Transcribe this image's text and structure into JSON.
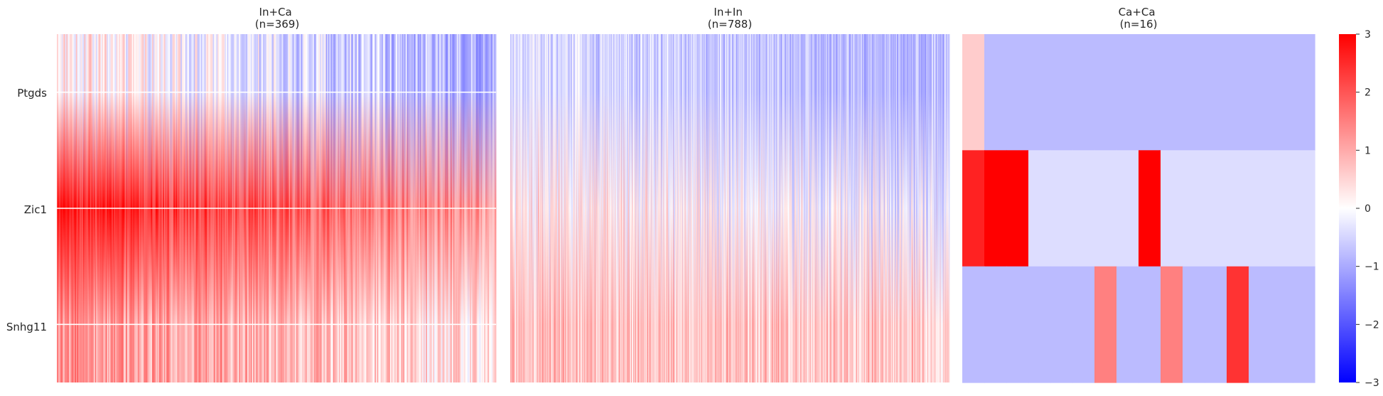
{
  "chart_data": {
    "type": "heatmap",
    "genes": [
      "Ptgds",
      "Zic1",
      "Snhg11"
    ],
    "colorbar": {
      "vmin": -3,
      "vmax": 3,
      "ticks": [
        3,
        2,
        1,
        0,
        -1,
        -2,
        -3
      ],
      "tick_labels": [
        "3",
        "2",
        "1",
        "0",
        "−1",
        "−2",
        "−3"
      ],
      "colormap": [
        "#0000ff",
        "#ffffff",
        "#ff0000"
      ]
    },
    "panels": [
      {
        "title_line1": "In+Ca",
        "title_line2": "(n=369)",
        "n": 369,
        "render": "smooth",
        "gridlines": true,
        "profile": {
          "Ptgds": {
            "start": 0.3,
            "end": -1.0,
            "spread": 0.7
          },
          "Zic1": {
            "start": 2.8,
            "end": 1.2,
            "spread": 0.6
          },
          "Snhg11": {
            "start": 1.3,
            "end": 0.3,
            "spread": 0.7
          }
        }
      },
      {
        "title_line1": "In+In",
        "title_line2": "(n=788)",
        "n": 788,
        "render": "smooth",
        "gridlines": false,
        "profile": {
          "Ptgds": {
            "start": -0.4,
            "end": -0.9,
            "spread": 0.6
          },
          "Zic1": {
            "start": 0.3,
            "end": -0.3,
            "spread": 0.8
          },
          "Snhg11": {
            "start": 0.8,
            "end": 0.6,
            "spread": 0.7
          }
        }
      },
      {
        "title_line1": "Ca+Ca",
        "title_line2": "(n=16)",
        "n": 16,
        "render": "blocks",
        "gridlines": false,
        "values": {
          "Ptgds": [
            0.6,
            -0.8,
            -0.8,
            -0.8,
            -0.8,
            -0.8,
            -0.8,
            -0.8,
            -0.8,
            -0.8,
            -0.8,
            -0.8,
            -0.8,
            -0.8,
            -0.8,
            -0.8
          ],
          "Zic1": [
            2.6,
            3.0,
            3.0,
            -0.4,
            -0.4,
            -0.4,
            -0.4,
            -0.4,
            3.0,
            -0.4,
            -0.4,
            -0.4,
            -0.4,
            -0.4,
            -0.4,
            -0.4
          ],
          "Snhg11": [
            -0.8,
            -0.8,
            -0.8,
            -0.8,
            -0.8,
            -0.8,
            1.5,
            -0.8,
            -0.8,
            1.5,
            -0.8,
            -0.8,
            2.4,
            -0.8,
            -0.8,
            -0.8
          ]
        }
      }
    ]
  }
}
